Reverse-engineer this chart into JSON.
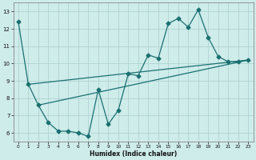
{
  "xlabel": "Humidex (Indice chaleur)",
  "bg_color": "#ceecea",
  "grid_color": "#aed4d0",
  "line_color": "#1a7070",
  "xlim": [
    -0.5,
    23.5
  ],
  "ylim": [
    5.5,
    13.5
  ],
  "yticks": [
    6,
    7,
    8,
    9,
    10,
    11,
    12,
    13
  ],
  "xticks": [
    0,
    1,
    2,
    3,
    4,
    5,
    6,
    7,
    8,
    9,
    10,
    11,
    12,
    13,
    14,
    15,
    16,
    17,
    18,
    19,
    20,
    21,
    22,
    23
  ],
  "line1_x": [
    0,
    1,
    2,
    3,
    4,
    5,
    6,
    7,
    8,
    9,
    10,
    11,
    12,
    13,
    14,
    15,
    16,
    17,
    18,
    19,
    20,
    21,
    22,
    23
  ],
  "line1_y": [
    12.4,
    8.8,
    7.6,
    6.6,
    6.1,
    6.1,
    6.0,
    5.8,
    8.5,
    6.5,
    7.3,
    9.4,
    9.3,
    10.5,
    10.3,
    12.3,
    12.6,
    12.1,
    13.1,
    11.5,
    10.4,
    10.1,
    10.1,
    10.2
  ],
  "line2_x": [
    1,
    23
  ],
  "line2_y": [
    8.8,
    10.2
  ],
  "line3_x": [
    2,
    23
  ],
  "line3_y": [
    7.6,
    10.2
  ]
}
